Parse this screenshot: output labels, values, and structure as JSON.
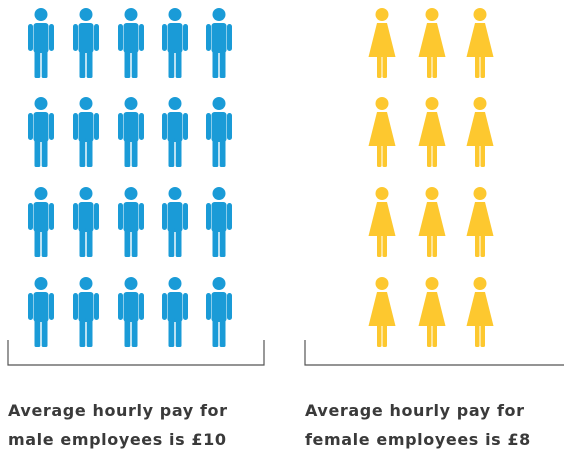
{
  "captions": [
    {
      "line1": "Average hourly pay for",
      "line2": "male employees is £10"
    },
    {
      "line1": "Average hourly pay for",
      "line2": "female employees is £8"
    }
  ]
}
